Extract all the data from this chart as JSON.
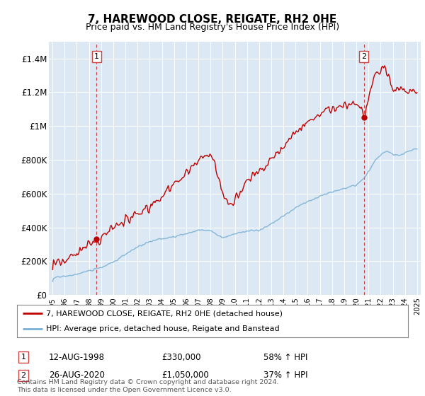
{
  "title": "7, HAREWOOD CLOSE, REIGATE, RH2 0HE",
  "subtitle": "Price paid vs. HM Land Registry's House Price Index (HPI)",
  "bg_color": "#dce9f5",
  "ylim": [
    0,
    1500000
  ],
  "yticks": [
    0,
    200000,
    400000,
    600000,
    800000,
    1000000,
    1200000,
    1400000
  ],
  "ytick_labels": [
    "£0",
    "£200K",
    "£400K",
    "£600K",
    "£800K",
    "£1M",
    "£1.2M",
    "£1.4M"
  ],
  "sale1_price": 330000,
  "sale1_date_str": "12-AUG-1998",
  "sale1_hpi_pct": "58% ↑ HPI",
  "sale2_price": 1050000,
  "sale2_date_str": "26-AUG-2020",
  "sale2_hpi_pct": "37% ↑ HPI",
  "red_line_color": "#c00000",
  "blue_line_color": "#7ab0d4",
  "marker_color": "#c00000",
  "legend_label1": "7, HAREWOOD CLOSE, REIGATE, RH2 0HE (detached house)",
  "legend_label2": "HPI: Average price, detached house, Reigate and Banstead",
  "footnote": "Contains HM Land Registry data © Crown copyright and database right 2024.\nThis data is licensed under the Open Government Licence v3.0.",
  "xstart_year": 1995,
  "xend_year": 2025
}
